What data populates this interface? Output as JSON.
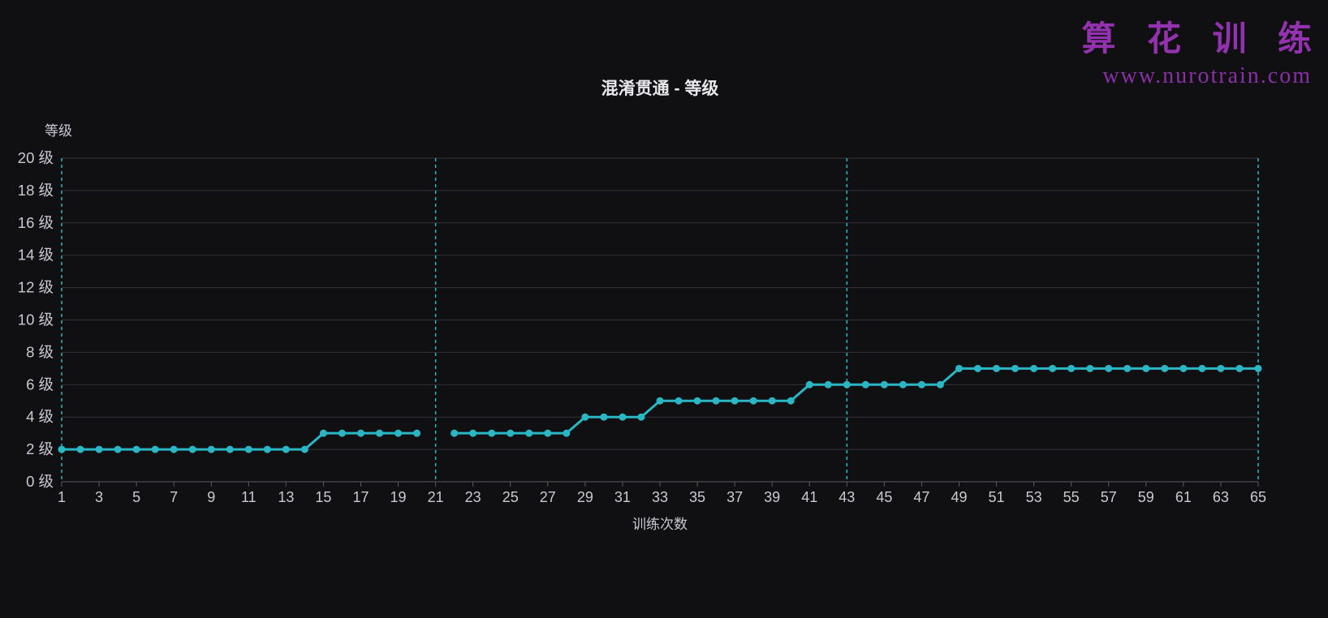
{
  "watermark": {
    "brand": "算 花 训 练",
    "url": "www.nurotrain.com",
    "brand_color": "#9331ae",
    "url_color": "#8a2fa5"
  },
  "chart": {
    "title": "混淆贯通 - 等级",
    "y_axis_title": "等级",
    "x_axis_title": "训练次数"
  },
  "chart_data": {
    "type": "line",
    "title": "混淆贯通 - 等级",
    "xlabel": "训练次数",
    "ylabel": "等级",
    "xlim": [
      1,
      65
    ],
    "ylim": [
      0,
      20
    ],
    "grid": "horizontal",
    "legend": "none",
    "x": [
      1,
      2,
      3,
      4,
      5,
      6,
      7,
      8,
      9,
      10,
      11,
      12,
      13,
      14,
      15,
      16,
      17,
      18,
      19,
      20,
      21,
      22,
      23,
      24,
      25,
      26,
      27,
      28,
      29,
      30,
      31,
      32,
      33,
      34,
      35,
      36,
      37,
      38,
      39,
      40,
      41,
      42,
      43,
      44,
      45,
      46,
      47,
      48,
      49,
      50,
      51,
      52,
      53,
      54,
      55,
      56,
      57,
      58,
      59,
      60,
      61,
      62,
      63,
      64,
      65
    ],
    "y": [
      2,
      2,
      2,
      2,
      2,
      2,
      2,
      2,
      2,
      2,
      2,
      2,
      2,
      2,
      3,
      3,
      3,
      3,
      3,
      3,
      null,
      3,
      3,
      3,
      3,
      3,
      3,
      3,
      4,
      4,
      4,
      4,
      5,
      5,
      5,
      5,
      5,
      5,
      5,
      5,
      6,
      6,
      6,
      6,
      6,
      6,
      6,
      6,
      7,
      7,
      7,
      7,
      7,
      7,
      7,
      7,
      7,
      7,
      7,
      7,
      7,
      7,
      7,
      7,
      7
    ],
    "x_ticks": {
      "values": [
        1,
        3,
        5,
        7,
        9,
        11,
        13,
        15,
        17,
        19,
        21,
        23,
        25,
        27,
        29,
        31,
        33,
        35,
        37,
        39,
        41,
        43,
        45,
        47,
        49,
        51,
        53,
        55,
        57,
        59,
        61,
        63,
        65
      ],
      "labels": [
        "1",
        "3",
        "5",
        "7",
        "9",
        "11",
        "13",
        "15",
        "17",
        "19",
        "21",
        "23",
        "25",
        "27",
        "29",
        "31",
        "33",
        "35",
        "37",
        "39",
        "41",
        "43",
        "45",
        "47",
        "49",
        "51",
        "53",
        "55",
        "57",
        "59",
        "61",
        "63",
        "65"
      ]
    },
    "y_ticks": {
      "values": [
        0,
        2,
        4,
        6,
        8,
        10,
        12,
        14,
        16,
        18,
        20
      ],
      "labels": [
        "0 级",
        "2 级",
        "4 级",
        "6 级",
        "8 级",
        "10 级",
        "12 级",
        "14 级",
        "16 级",
        "18 级",
        "20 级"
      ]
    },
    "separator_lines_x": [
      21,
      43
    ],
    "colors": {
      "line": "#2bb6c4",
      "marker": "#2bb6c4",
      "dashed_axis": "#2fb4c4",
      "grid": "#32323a",
      "axis": "#5a5a64",
      "tick_text": "#c9c9d3",
      "background": "#101013"
    }
  }
}
